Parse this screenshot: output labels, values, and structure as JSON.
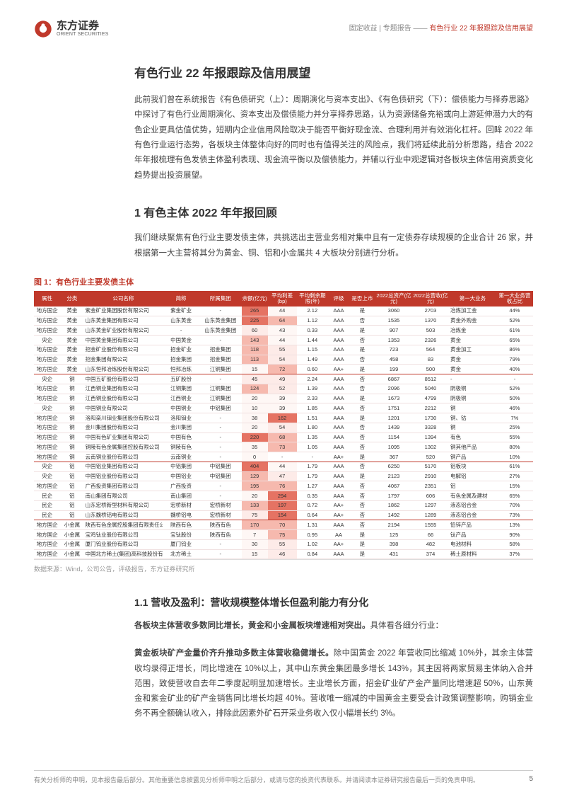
{
  "header": {
    "logo_cn": "东方证券",
    "logo_en": "ORIENT SECURITIES",
    "right_prefix": "固定收益 | 专题报告 —— ",
    "right_title": "有色行业 22 年报跟踪及信用展望"
  },
  "title": "有色行业 22 年报跟踪及信用展望",
  "intro": "此前我们曾在系统报告《有色债研究（上）：周期演化与资本支出》、《有色债研究（下）：偿债能力与择券思路》中探讨了有色行业周期演化、资本支出及偿债能力并分享择券思路，认为资源储备充裕或向上游延伸潜力大的有色企业更具估值优势，短期内企业信用风险取决于能否平衡好现金流、合理利用并有效消化杠杆。回眸 2022 年有色行业运行态势，各板块主体整体向好的同时也有值得关注的风险点，我们将延续此前分析思路，结合 2022 年年报梳理有色发债主体盈利表现、现金流平衡以及偿债能力，并辅以行业中观逻辑对各板块主体信用资质变化趋势提出投资展望。",
  "section1_title": "1 有色主体 2022 年年报回顾",
  "section1_intro": "我们继续聚焦有色行业主要发债主体，共挑选出主营业务相对集中且有一定债券存续规模的企业合计 26 家，并根据第一大主营将其分为黄金、铜、铝和小金属共 4 大板块分别进行分析。",
  "figure_caption": "图 1：有色行业主要发债主体",
  "table": {
    "columns": [
      "属性",
      "分类",
      "公司名称",
      "简称",
      "所属集团",
      "余额(亿元)",
      "平均利差(bp)",
      "平均剩余期限(年)",
      "评级",
      "是否上市",
      "2022总资产(亿元)",
      "2022总营收(亿元)",
      "第一大业务",
      "第一大业务营收占比"
    ],
    "col_widths": [
      "5%",
      "4.5%",
      "15%",
      "7%",
      "8%",
      "5%",
      "5.5%",
      "6%",
      "4%",
      "5%",
      "7%",
      "7%",
      "9%",
      "7%"
    ],
    "heat_colors": {
      "low": "#fdebe8",
      "mid": "#f6b9ae",
      "high": "#e57363",
      "verylow": "#fef7f5"
    },
    "groups": [
      {
        "sep": true,
        "rows": [
          [
            "地方国企",
            "黄金",
            "紫金矿业集团股份有限公司",
            "紫金矿业",
            "-",
            "265",
            "44",
            "2.12",
            "AAA",
            "是",
            "3060",
            "2703",
            "冶炼加工金",
            "44%"
          ],
          [
            "地方国企",
            "黄金",
            "山东黄金集团有限公司",
            "山东黄金",
            "山东黄金集团",
            "225",
            "64",
            "1.12",
            "AAA",
            "否",
            "1535",
            "1370",
            "黄金外购金",
            "52%"
          ],
          [
            "地方国企",
            "黄金",
            "山东黄金矿业股份有限公司",
            "-",
            "山东黄金集团",
            "60",
            "43",
            "0.33",
            "AAA",
            "是",
            "907",
            "503",
            "冶炼金",
            "61%"
          ],
          [
            "央企",
            "黄金",
            "中国黄金集团有限公司",
            "中国黄金",
            "-",
            "143",
            "44",
            "1.44",
            "AAA",
            "否",
            "1353",
            "2326",
            "黄金",
            "65%"
          ],
          [
            "地方国企",
            "黄金",
            "招金矿业股份有限公司",
            "招金矿业",
            "招金集团",
            "118",
            "55",
            "1.15",
            "AAA",
            "是",
            "723",
            "564",
            "黄金加工",
            "86%"
          ],
          [
            "地方国企",
            "黄金",
            "招金集团有限公司",
            "招金集团",
            "招金集团",
            "113",
            "54",
            "1.49",
            "AAA",
            "否",
            "458",
            "83",
            "黄金",
            "79%"
          ],
          [
            "地方国企",
            "黄金",
            "山东恒邦冶炼股份有限公司",
            "恒邦冶炼",
            "江铜集团",
            "15",
            "72",
            "0.60",
            "AA+",
            "是",
            "199",
            "500",
            "黄金",
            "40%"
          ]
        ]
      },
      {
        "sep": true,
        "rows": [
          [
            "央企",
            "铜",
            "中国五矿股份有限公司",
            "五矿股份",
            "-",
            "45",
            "49",
            "2.24",
            "AAA",
            "否",
            "6867",
            "8512",
            "-",
            "-"
          ],
          [
            "地方国企",
            "铜",
            "江西铜业集团有限公司",
            "江铜集团",
            "江铜集团",
            "124",
            "52",
            "1.39",
            "AAA",
            "否",
            "2096",
            "5040",
            "阴极铜",
            "52%"
          ],
          [
            "地方国企",
            "铜",
            "江西铜业股份有限公司",
            "江西铜业",
            "江铜集团",
            "20",
            "39",
            "2.33",
            "AAA",
            "是",
            "1673",
            "4799",
            "阴极铜",
            "50%"
          ],
          [
            "央企",
            "铜",
            "中国铜业有限公司",
            "中国铜业",
            "中铝集团",
            "10",
            "39",
            "1.85",
            "AAA",
            "否",
            "1751",
            "2212",
            "铜",
            "46%"
          ],
          [
            "地方国企",
            "铜",
            "洛阳栾川钼业集团股份有限公司",
            "洛阳钼业",
            "-",
            "38",
            "162",
            "1.51",
            "AAA",
            "是",
            "1201",
            "1730",
            "铜、钴",
            "7%"
          ],
          [
            "地方国企",
            "铜",
            "金川集团股份有限公司",
            "金川集团",
            "-",
            "20",
            "54",
            "1.80",
            "AAA",
            "否",
            "1439",
            "3328",
            "铜",
            "25%"
          ],
          [
            "地方国企",
            "铜",
            "中国有色矿业集团有限公司",
            "中国有色",
            "-",
            "220",
            "68",
            "1.35",
            "AAA",
            "否",
            "1154",
            "1394",
            "有色",
            "55%"
          ],
          [
            "地方国企",
            "铜",
            "铜陵有色金属集团控股有限公司",
            "铜陵有色",
            "-",
            "35",
            "73",
            "1.05",
            "AAA",
            "否",
            "1095",
            "1302",
            "铜其他产品",
            "80%"
          ],
          [
            "地方国企",
            "铜",
            "云南铜业股份有限公司",
            "云南铜业",
            "-",
            "0",
            "-",
            "-",
            "AA+",
            "是",
            "367",
            "520",
            "铜产品",
            "10%"
          ]
        ]
      },
      {
        "sep": true,
        "rows": [
          [
            "央企",
            "铝",
            "中国铝业集团有限公司",
            "中铝集团",
            "中铝集团",
            "404",
            "44",
            "1.79",
            "AAA",
            "否",
            "6250",
            "5170",
            "铝板块",
            "61%"
          ],
          [
            "央企",
            "铝",
            "中国铝业股份有限公司",
            "中国铝业",
            "中铝集团",
            "129",
            "47",
            "1.79",
            "AAA",
            "是",
            "2123",
            "2910",
            "电解铝",
            "27%"
          ],
          [
            "地方国企",
            "铝",
            "广西投资集团有限公司",
            "广西投资",
            "-",
            "195",
            "76",
            "1.27",
            "AAA",
            "否",
            "4067",
            "2351",
            "铝",
            "15%"
          ],
          [
            "民企",
            "铝",
            "南山集团有限公司",
            "南山集团",
            "-",
            "20",
            "294",
            "0.35",
            "AAA",
            "否",
            "1797",
            "606",
            "有色金属及建材",
            "65%"
          ],
          [
            "民企",
            "铝",
            "山东宏桥新型材料有限公司",
            "宏桥新材",
            "宏桥新材",
            "133",
            "197",
            "0.72",
            "AA+",
            "否",
            "1862",
            "1297",
            "液态铝合金",
            "70%"
          ],
          [
            "民企",
            "铝",
            "山东魏桥铝电有限公司",
            "魏桥铝电",
            "宏桥新材",
            "75",
            "154",
            "0.64",
            "AA+",
            "否",
            "1492",
            "1289",
            "液态铝合金",
            "73%"
          ]
        ]
      },
      {
        "sep": false,
        "rows": [
          [
            "地方国企",
            "小金属",
            "陕西有色金属控股集团有限责任公司",
            "陕西有色",
            "陕西有色",
            "170",
            "70",
            "1.31",
            "AAA",
            "否",
            "2194",
            "1555",
            "铅锌产品",
            "13%"
          ],
          [
            "地方国企",
            "小金属",
            "宝鸡钛业股份有限公司",
            "宝钛股份",
            "陕西有色",
            "7",
            "75",
            "0.95",
            "AA",
            "是",
            "125",
            "66",
            "钛产品",
            "90%"
          ],
          [
            "地方国企",
            "小金属",
            "厦门钨业股份有限公司",
            "厦门钨业",
            "-",
            "30",
            "55",
            "1.02",
            "AA+",
            "是",
            "398",
            "482",
            "电池材料",
            "58%"
          ],
          [
            "地方国企",
            "小金属",
            "中国北方稀土(集团)高科技股份有限公司",
            "北方稀土",
            "-",
            "15",
            "46",
            "0.84",
            "AAA",
            "是",
            "431",
            "374",
            "稀土原材料",
            "37%"
          ]
        ]
      }
    ]
  },
  "source": "数据来源：Wind，公司公告，评级报告，东方证券研究所",
  "section11_title": "1.1 营收及盈利：营收规模整体增长但盈利能力有分化",
  "para2_bold": "各板块主体营收多数同比增长，黄金和小金属板块增速相对突出。",
  "para2_rest": "具体看各细分行业：",
  "para3_bold": "黄金板块矿产金量价齐升推动多数主体营收稳健增长。",
  "para3_rest": "除中国黄金 2022 年营收同比缩减 10%外，其余主体营收均录得正增长，同比增速在 10%以上，其中山东黄金集团最多增长 143%，其主因将两家贸易主体纳入合并范围，致使营收自去年二季度起明显加速增长。主业增长方面，招金矿业矿产金产量同比增速超 50%，山东黄金和紫金矿业的矿产金销售同比增长均超 40%。营收唯一缩减的中国黄金主要受会计政策调整影响，购销金业务不再全额确认收入，排除此因素外矿石开采业务收入仅小幅增长约 3%。",
  "footer": "有关分析师的申明，见本报告最后部分。其他重要信息披露见分析师申明之后部分，或请与您的投资代表联系。并请阅读本证券研究报告最后一页的免责申明。",
  "page_number": "5"
}
